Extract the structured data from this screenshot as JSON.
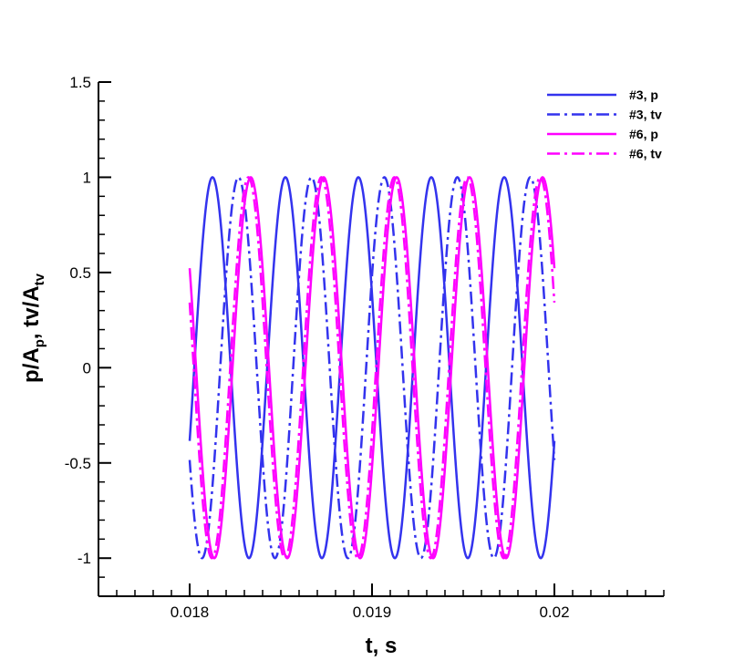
{
  "chart_data": {
    "type": "line",
    "xlabel": "t, s",
    "ylabel_main": "p/A",
    "ylabel_sub1": "p",
    "ylabel_mid": ", tv/A",
    "ylabel_sub2": "tv",
    "xlim": [
      0.0175,
      0.0206
    ],
    "ylim": [
      -1.2,
      1.5
    ],
    "x_ticks": [
      0.018,
      0.019,
      0.02
    ],
    "x_tick_labels": [
      "0.018",
      "0.019",
      "0.02"
    ],
    "x_minor_step": 0.0001,
    "y_ticks": [
      -1,
      -0.5,
      0,
      0.5,
      1,
      1.5
    ],
    "y_tick_labels": [
      "-1",
      "-0.5",
      "0",
      "0.5",
      "1",
      "1.5"
    ],
    "y_minor_step": 0.1,
    "grid": false,
    "legend_position": "top-right",
    "t_range": [
      0.018,
      0.02
    ],
    "series": [
      {
        "name": "#3, p",
        "color": "#3333ee",
        "dash": "solid",
        "frequency_hz": 2500,
        "phase_deg": -22.6
      },
      {
        "name": "#3, tv",
        "color": "#3333ee",
        "dash": "dash-dot",
        "frequency_hz": 2500,
        "phase_deg": -151.0
      },
      {
        "name": "#6, p",
        "color": "#ff00ff",
        "dash": "solid",
        "frequency_hz": 2500,
        "phase_deg": 148.5
      },
      {
        "name": "#6, tv",
        "color": "#ff00ff",
        "dash": "dash-dot",
        "frequency_hz": 2500,
        "phase_deg": 160.0
      }
    ]
  }
}
